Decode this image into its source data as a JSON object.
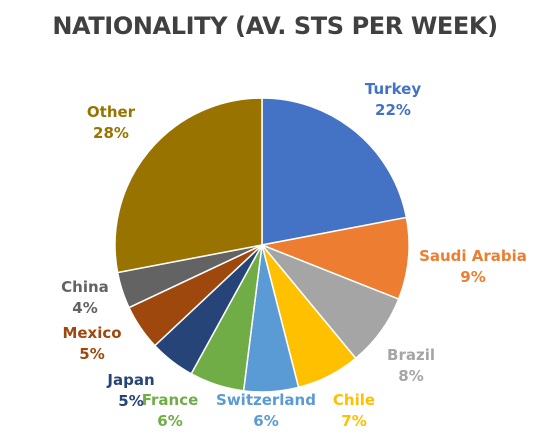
{
  "chart_data": {
    "type": "pie",
    "title": "NATIONALITY (AV. STS PER WEEK)",
    "start_angle_deg": 0,
    "direction": "clockwise",
    "slices": [
      {
        "label": "Turkey",
        "value": 22,
        "value_label": "22%",
        "color": "#4472C4"
      },
      {
        "label": "Saudi Arabia",
        "value": 9,
        "value_label": "9%",
        "color": "#ED7D31"
      },
      {
        "label": "Brazil",
        "value": 8,
        "value_label": "8%",
        "color": "#A5A5A5"
      },
      {
        "label": "Chile",
        "value": 7,
        "value_label": "7%",
        "color": "#FFC000"
      },
      {
        "label": "Switzerland",
        "value": 6,
        "value_label": "6%",
        "color": "#5B9BD5"
      },
      {
        "label": "France",
        "value": 6,
        "value_label": "6%",
        "color": "#70AD47"
      },
      {
        "label": "Japan",
        "value": 5,
        "value_label": "5%",
        "color": "#264478"
      },
      {
        "label": "Mexico",
        "value": 5,
        "value_label": "5%",
        "color": "#9E480E"
      },
      {
        "label": "China",
        "value": 4,
        "value_label": "4%",
        "color": "#636363"
      },
      {
        "label": "Other",
        "value": 28,
        "value_label": "28%",
        "color": "#997300"
      }
    ]
  }
}
